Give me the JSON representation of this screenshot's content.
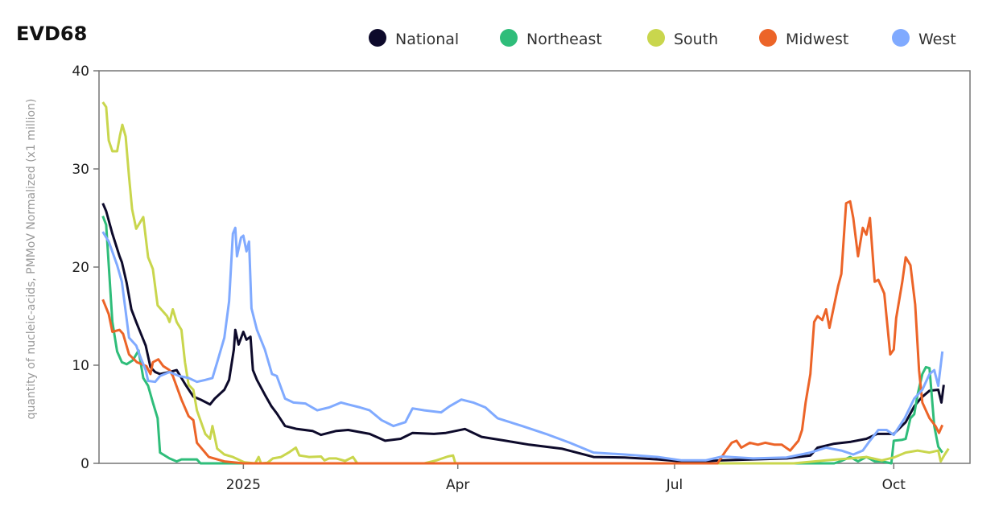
{
  "chart_data": {
    "type": "line",
    "title": "EVD68",
    "xlabel": "",
    "ylabel": "quantity of nucleic-acids, PMMoV Normalized (x1 million)",
    "x_unit": "days since 2025-01-01",
    "xlim": [
      -60.6,
      305
    ],
    "ylim": [
      0,
      40
    ],
    "yticks": [
      0,
      10,
      20,
      30,
      40
    ],
    "xticks": [
      {
        "label": "2025",
        "x": 0
      },
      {
        "label": "Apr",
        "x": 90
      },
      {
        "label": "Jul",
        "x": 181
      },
      {
        "label": "Oct",
        "x": 273
      }
    ],
    "grid": false,
    "legend_position": "top-right",
    "series": [
      {
        "name": "National",
        "color": "#0d0a2b",
        "points": [
          [
            -59,
            26.5
          ],
          [
            -57.6,
            25.7
          ],
          [
            -55,
            23.4
          ],
          [
            -52,
            21.1
          ],
          [
            -51,
            20.5
          ],
          [
            -49,
            18.4
          ],
          [
            -47,
            15.7
          ],
          [
            -45,
            14.4
          ],
          [
            -43,
            13.2
          ],
          [
            -41,
            12
          ],
          [
            -39,
            9.8
          ],
          [
            -37,
            9.3
          ],
          [
            -35,
            9.1
          ],
          [
            -31,
            9.3
          ],
          [
            -28,
            9.5
          ],
          [
            -24,
            7.9
          ],
          [
            -21,
            6.8
          ],
          [
            -18,
            6.5
          ],
          [
            -14,
            6
          ],
          [
            -12,
            6.6
          ],
          [
            -8,
            7.5
          ],
          [
            -6,
            8.5
          ],
          [
            -4,
            11.6
          ],
          [
            -3.4,
            13.6
          ],
          [
            -2,
            12.1
          ],
          [
            0,
            13.4
          ],
          [
            1.3,
            12.6
          ],
          [
            3,
            12.9
          ],
          [
            4,
            9.5
          ],
          [
            5.7,
            8.5
          ],
          [
            9,
            7
          ],
          [
            11.8,
            5.8
          ],
          [
            14,
            5.1
          ],
          [
            17.5,
            3.8
          ],
          [
            22.5,
            3.5
          ],
          [
            29,
            3.3
          ],
          [
            32.6,
            2.9
          ],
          [
            39,
            3.3
          ],
          [
            44,
            3.4
          ],
          [
            53,
            3
          ],
          [
            59.5,
            2.3
          ],
          [
            66,
            2.5
          ],
          [
            71,
            3.1
          ],
          [
            80,
            3
          ],
          [
            85,
            3.1
          ],
          [
            93,
            3.5
          ],
          [
            100,
            2.7
          ],
          [
            110,
            2.3
          ],
          [
            120,
            1.9
          ],
          [
            133.6,
            1.5
          ],
          [
            147,
            0.65
          ],
          [
            160,
            0.6
          ],
          [
            174,
            0.4
          ],
          [
            187,
            0.15
          ],
          [
            201,
            0.3
          ],
          [
            214,
            0.4
          ],
          [
            228,
            0.5
          ],
          [
            238,
            0.8
          ],
          [
            241,
            1.6
          ],
          [
            248,
            2
          ],
          [
            255,
            2.2
          ],
          [
            261.5,
            2.5
          ],
          [
            266,
            3
          ],
          [
            270,
            3
          ],
          [
            273,
            3
          ],
          [
            278,
            4.2
          ],
          [
            281.6,
            5.8
          ],
          [
            284.6,
            6.7
          ],
          [
            288,
            7.4
          ],
          [
            291.7,
            7.5
          ],
          [
            293,
            6.2
          ],
          [
            294,
            8
          ]
        ]
      },
      {
        "name": "Northeast",
        "color": "#2fbd7a",
        "points": [
          [
            -59,
            25.2
          ],
          [
            -57.6,
            24.3
          ],
          [
            -55,
            14.4
          ],
          [
            -53,
            11.4
          ],
          [
            -51,
            10.3
          ],
          [
            -49,
            10.1
          ],
          [
            -46.4,
            10.5
          ],
          [
            -44,
            11.5
          ],
          [
            -42,
            8.7
          ],
          [
            -40,
            7.9
          ],
          [
            -38,
            6.2
          ],
          [
            -36,
            4.6
          ],
          [
            -35,
            1.1
          ],
          [
            -31,
            0.5
          ],
          [
            -28,
            0.2
          ],
          [
            -26,
            0.4
          ],
          [
            -19.5,
            0.4
          ],
          [
            -18,
            0
          ],
          [
            248,
            0
          ],
          [
            251,
            0.25
          ],
          [
            254.7,
            0.65
          ],
          [
            258,
            0.2
          ],
          [
            261.5,
            0.65
          ],
          [
            265,
            0.2
          ],
          [
            268,
            0.2
          ],
          [
            272,
            0
          ],
          [
            273,
            2.3
          ],
          [
            276.6,
            2.4
          ],
          [
            278,
            2.5
          ],
          [
            280,
            4.6
          ],
          [
            281.6,
            5
          ],
          [
            283,
            7
          ],
          [
            285,
            9.1
          ],
          [
            286.5,
            9.8
          ],
          [
            288,
            9.7
          ],
          [
            290,
            3.8
          ],
          [
            291.7,
            1.7
          ],
          [
            293.4,
            1.1
          ]
        ]
      },
      {
        "name": "South",
        "color": "#c9d64d",
        "points": [
          [
            -59,
            36.8
          ],
          [
            -57.6,
            36.3
          ],
          [
            -56.5,
            32.9
          ],
          [
            -55,
            31.8
          ],
          [
            -53,
            31.8
          ],
          [
            -51.8,
            33.4
          ],
          [
            -50.8,
            34.5
          ],
          [
            -49.4,
            33.3
          ],
          [
            -48,
            29.2
          ],
          [
            -46.7,
            25.9
          ],
          [
            -45,
            23.9
          ],
          [
            -43,
            24.7
          ],
          [
            -42,
            25.1
          ],
          [
            -40,
            21
          ],
          [
            -38,
            19.8
          ],
          [
            -36,
            16.1
          ],
          [
            -32,
            15
          ],
          [
            -31,
            14.4
          ],
          [
            -29.6,
            15.7
          ],
          [
            -28,
            14.4
          ],
          [
            -26,
            13.6
          ],
          [
            -24.5,
            10.3
          ],
          [
            -23,
            8
          ],
          [
            -21,
            7.5
          ],
          [
            -19.5,
            5.4
          ],
          [
            -16,
            3
          ],
          [
            -14,
            2.5
          ],
          [
            -13,
            3.8
          ],
          [
            -11,
            1.5
          ],
          [
            -8,
            0.9
          ],
          [
            -4.4,
            0.65
          ],
          [
            0.5,
            0.1
          ],
          [
            5,
            0
          ],
          [
            6.4,
            0.65
          ],
          [
            7.4,
            0
          ],
          [
            10,
            0.05
          ],
          [
            12.4,
            0.5
          ],
          [
            15.8,
            0.65
          ],
          [
            19,
            1.1
          ],
          [
            22,
            1.6
          ],
          [
            23.5,
            0.8
          ],
          [
            27.6,
            0.65
          ],
          [
            32.6,
            0.7
          ],
          [
            34,
            0.3
          ],
          [
            36,
            0.5
          ],
          [
            39,
            0.5
          ],
          [
            42.7,
            0.25
          ],
          [
            46,
            0.65
          ],
          [
            47.8,
            0
          ],
          [
            76,
            0
          ],
          [
            81,
            0.3
          ],
          [
            85.8,
            0.7
          ],
          [
            88,
            0.8
          ],
          [
            89,
            0
          ],
          [
            231,
            0
          ],
          [
            244.6,
            0.3
          ],
          [
            254.7,
            0.5
          ],
          [
            261.5,
            0.65
          ],
          [
            268,
            0.3
          ],
          [
            273,
            0.6
          ],
          [
            278,
            1.1
          ],
          [
            283,
            1.3
          ],
          [
            288,
            1.1
          ],
          [
            291.7,
            1.3
          ],
          [
            292.7,
            0.2
          ],
          [
            294.4,
            0.9
          ],
          [
            296,
            1.5
          ]
        ]
      },
      {
        "name": "Midwest",
        "color": "#ec6428",
        "points": [
          [
            -59,
            16.7
          ],
          [
            -56.5,
            15.2
          ],
          [
            -55,
            13.4
          ],
          [
            -52,
            13.6
          ],
          [
            -50.5,
            13.2
          ],
          [
            -48,
            11.1
          ],
          [
            -44.7,
            10.3
          ],
          [
            -40.7,
            9.9
          ],
          [
            -39,
            9.1
          ],
          [
            -38,
            10.3
          ],
          [
            -35.7,
            10.6
          ],
          [
            -33.6,
            9.9
          ],
          [
            -31,
            9.5
          ],
          [
            -29.6,
            8.9
          ],
          [
            -26,
            6.5
          ],
          [
            -23,
            4.8
          ],
          [
            -21,
            4.4
          ],
          [
            -19.5,
            2.1
          ],
          [
            -14.5,
            0.65
          ],
          [
            -8,
            0.2
          ],
          [
            0,
            0
          ],
          [
            199,
            0
          ],
          [
            202.6,
            1.3
          ],
          [
            205,
            2.1
          ],
          [
            207,
            2.3
          ],
          [
            209,
            1.6
          ],
          [
            212.6,
            2.1
          ],
          [
            216,
            1.9
          ],
          [
            219,
            2.1
          ],
          [
            223,
            1.9
          ],
          [
            226,
            1.9
          ],
          [
            229.5,
            1.3
          ],
          [
            233,
            2.3
          ],
          [
            234.5,
            3.4
          ],
          [
            236,
            6.2
          ],
          [
            238,
            9.1
          ],
          [
            239.6,
            14.4
          ],
          [
            241,
            15
          ],
          [
            243,
            14.6
          ],
          [
            244.6,
            15.7
          ],
          [
            246,
            13.8
          ],
          [
            249.7,
            18.1
          ],
          [
            251,
            19.3
          ],
          [
            253,
            26.5
          ],
          [
            254.7,
            26.7
          ],
          [
            256,
            25
          ],
          [
            258,
            21.1
          ],
          [
            260,
            24
          ],
          [
            261.5,
            23.3
          ],
          [
            263,
            25
          ],
          [
            265,
            18.5
          ],
          [
            266.5,
            18.7
          ],
          [
            269,
            17.3
          ],
          [
            271.5,
            11.1
          ],
          [
            273,
            11.6
          ],
          [
            274,
            14.8
          ],
          [
            276.6,
            18.5
          ],
          [
            278,
            21
          ],
          [
            280,
            20.2
          ],
          [
            282,
            16.2
          ],
          [
            283.6,
            9.5
          ],
          [
            285,
            6.2
          ],
          [
            288,
            4.6
          ],
          [
            290.5,
            3.8
          ],
          [
            292,
            3.1
          ],
          [
            293.4,
            3.9
          ]
        ]
      },
      {
        "name": "West",
        "color": "#80aaff",
        "points": [
          [
            -59,
            23.6
          ],
          [
            -56.5,
            22.6
          ],
          [
            -53,
            20.2
          ],
          [
            -51,
            18.5
          ],
          [
            -48,
            12.8
          ],
          [
            -45,
            12
          ],
          [
            -43,
            10.7
          ],
          [
            -41,
            9.5
          ],
          [
            -40,
            8.4
          ],
          [
            -37,
            8.3
          ],
          [
            -35,
            8.9
          ],
          [
            -31,
            9.3
          ],
          [
            -27,
            8.9
          ],
          [
            -23,
            8.7
          ],
          [
            -19.5,
            8.3
          ],
          [
            -16,
            8.5
          ],
          [
            -13,
            8.7
          ],
          [
            -11,
            10.3
          ],
          [
            -8,
            12.8
          ],
          [
            -6,
            16.5
          ],
          [
            -4.4,
            23.4
          ],
          [
            -3.4,
            24
          ],
          [
            -2.7,
            21.1
          ],
          [
            -1,
            23
          ],
          [
            0,
            23.2
          ],
          [
            1.3,
            21.6
          ],
          [
            2.4,
            22.6
          ],
          [
            3.4,
            15.8
          ],
          [
            5.7,
            13.6
          ],
          [
            9,
            11.6
          ],
          [
            12,
            9.1
          ],
          [
            14,
            8.9
          ],
          [
            17.5,
            6.6
          ],
          [
            21,
            6.2
          ],
          [
            26,
            6.1
          ],
          [
            31,
            5.4
          ],
          [
            36,
            5.7
          ],
          [
            41,
            6.2
          ],
          [
            44,
            6
          ],
          [
            49,
            5.7
          ],
          [
            53,
            5.4
          ],
          [
            58,
            4.4
          ],
          [
            63,
            3.8
          ],
          [
            68,
            4.2
          ],
          [
            71,
            5.6
          ],
          [
            76,
            5.4
          ],
          [
            83,
            5.2
          ],
          [
            86.5,
            5.8
          ],
          [
            91.5,
            6.5
          ],
          [
            96.5,
            6.2
          ],
          [
            101.6,
            5.7
          ],
          [
            106.7,
            4.6
          ],
          [
            117,
            3.8
          ],
          [
            127,
            3
          ],
          [
            137,
            2.1
          ],
          [
            147,
            1.1
          ],
          [
            160,
            0.9
          ],
          [
            174,
            0.65
          ],
          [
            184,
            0.3
          ],
          [
            194,
            0.3
          ],
          [
            201,
            0.7
          ],
          [
            214,
            0.5
          ],
          [
            228,
            0.6
          ],
          [
            238,
            1.1
          ],
          [
            244.6,
            1.6
          ],
          [
            251,
            1.3
          ],
          [
            256,
            0.9
          ],
          [
            260,
            1.3
          ],
          [
            263,
            2.3
          ],
          [
            266.5,
            3.4
          ],
          [
            270,
            3.4
          ],
          [
            273,
            2.9
          ],
          [
            277.6,
            4.6
          ],
          [
            281.6,
            6.6
          ],
          [
            285,
            7.5
          ],
          [
            288,
            9.1
          ],
          [
            290,
            9.5
          ],
          [
            291.7,
            7.9
          ],
          [
            293.4,
            11.4
          ]
        ]
      }
    ]
  }
}
